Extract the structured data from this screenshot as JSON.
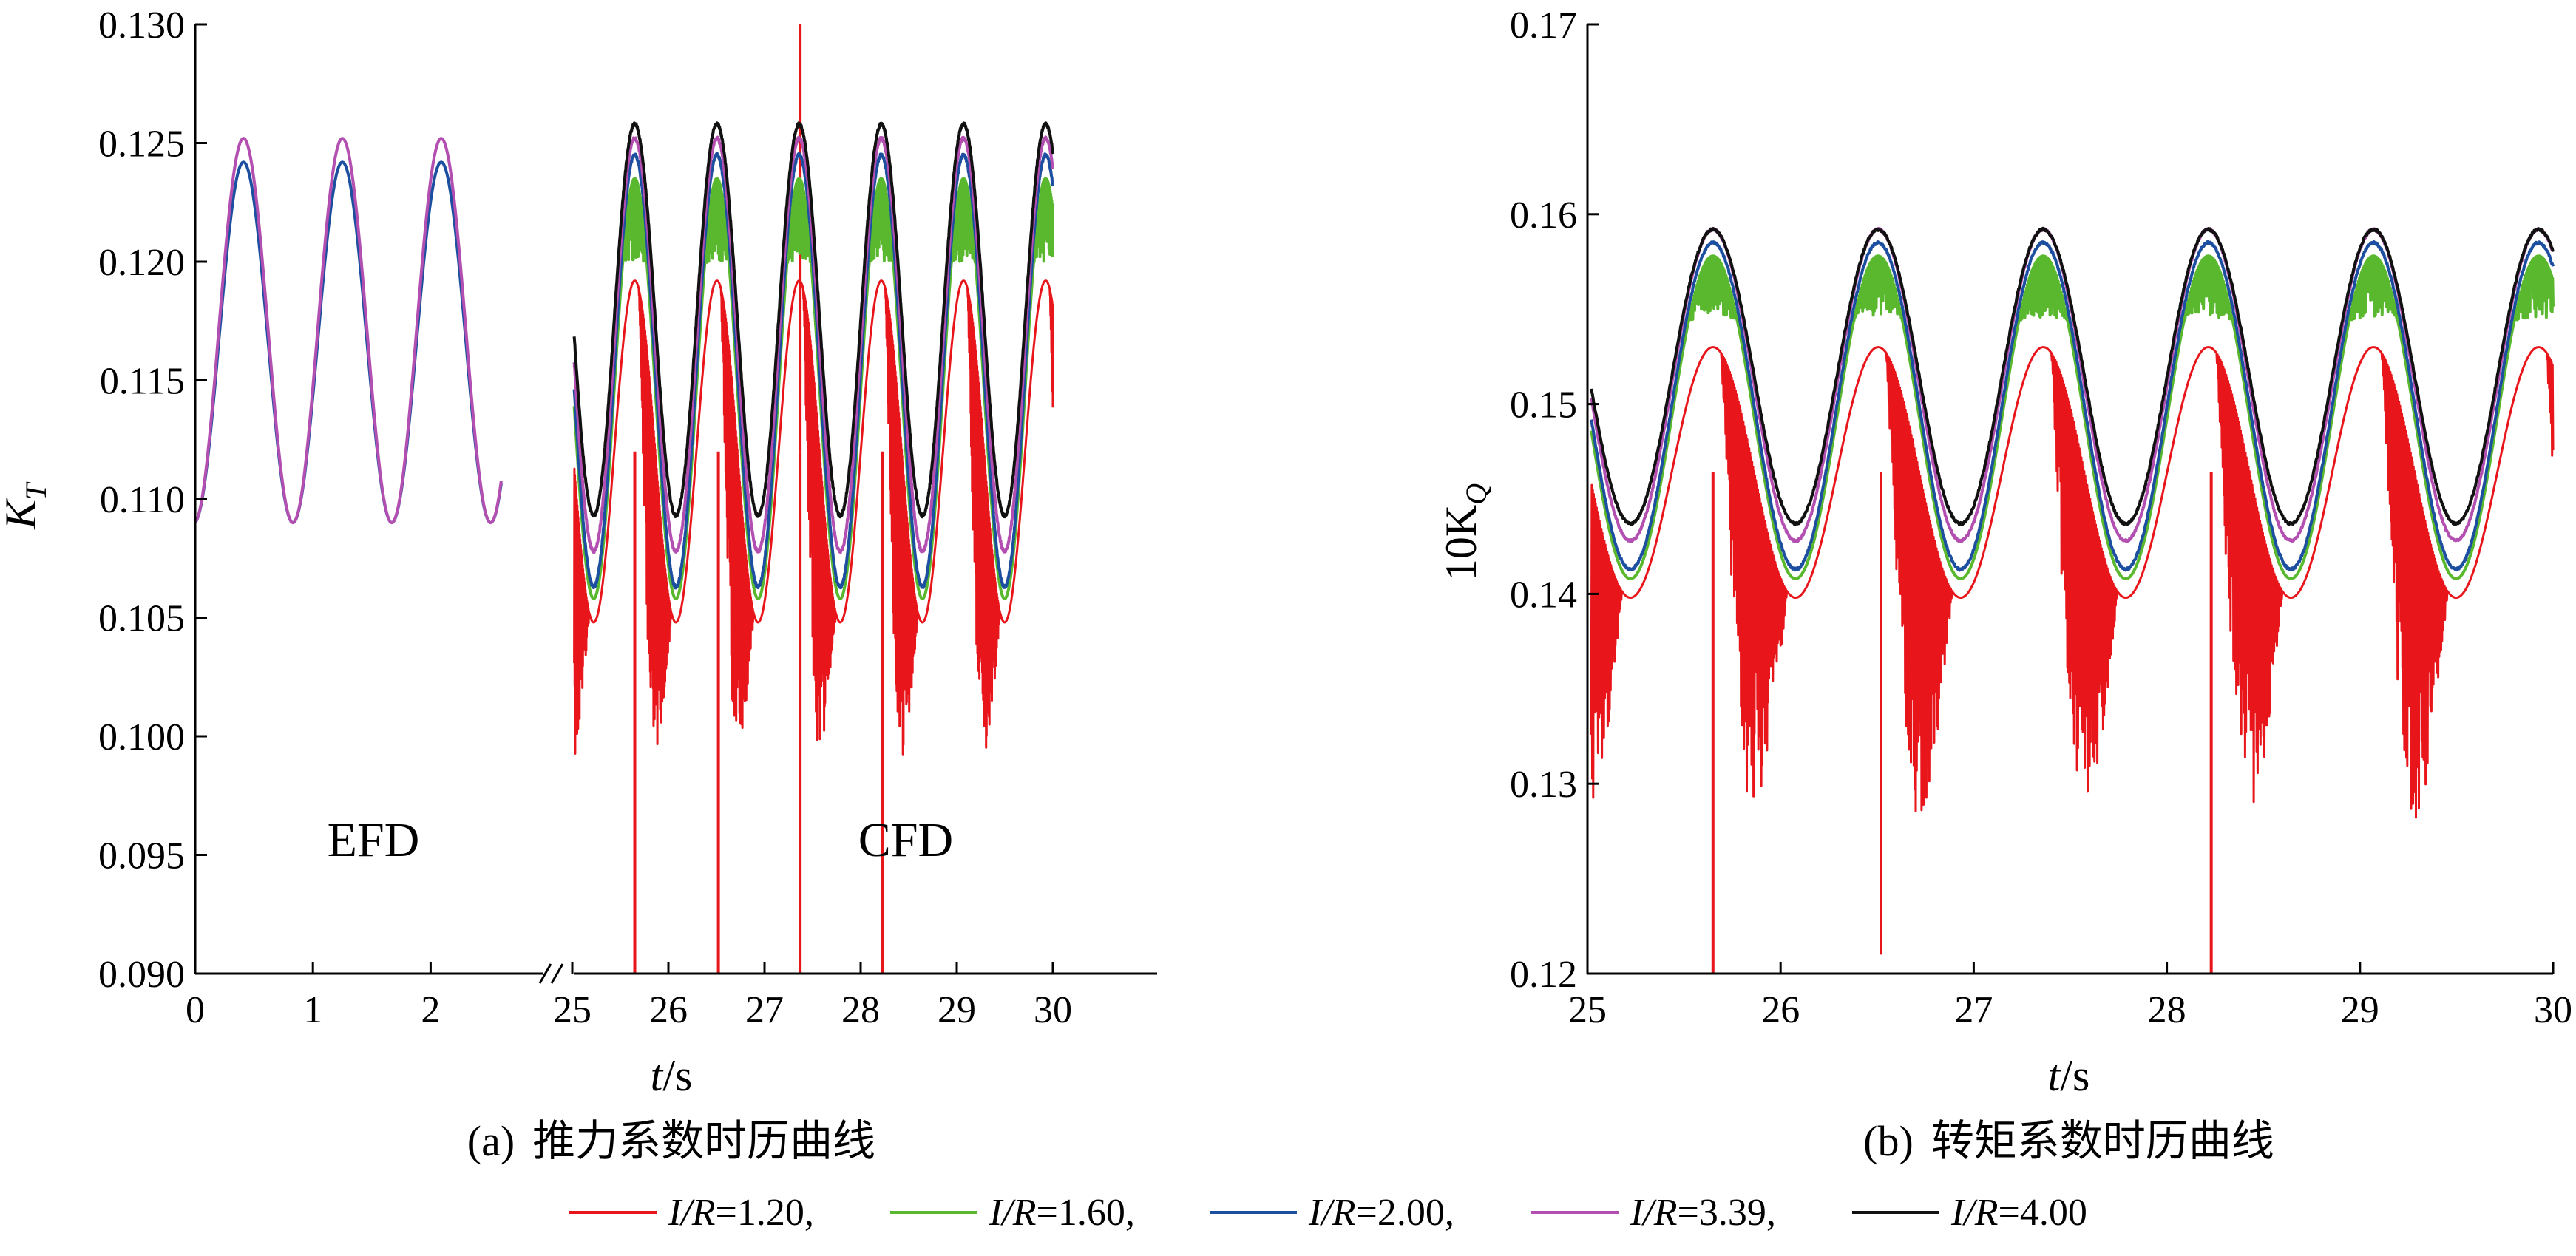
{
  "chart_data": [
    {
      "panel": "a",
      "type": "line",
      "caption_tag": "(a)",
      "caption_text": "推力系数时历曲线",
      "ylabel_main": "K",
      "ylabel_sub": "T",
      "xlabel_var": "t",
      "xlabel_unit": "/s",
      "ylim": [
        0.09,
        0.13
      ],
      "y_ticks": [
        "0.130",
        "0.125",
        "0.120",
        "0.115",
        "0.110",
        "0.105",
        "0.100",
        "0.095",
        "0.090"
      ],
      "x_ticks_efd": [
        "0",
        "1",
        "2"
      ],
      "x_ticks_cfd": [
        "25",
        "26",
        "27",
        "28",
        "29",
        "30"
      ],
      "x_break": true,
      "annotations": [
        "EFD",
        "CFD"
      ],
      "efd": {
        "x_range": [
          0,
          2.6
        ],
        "period": 0.84,
        "series": [
          {
            "name": "I/R=2.00",
            "mean": 0.1166,
            "amplitude": 0.0076
          },
          {
            "name": "I/R=3.39",
            "mean": 0.1171,
            "amplitude": 0.0081
          }
        ]
      },
      "cfd": {
        "x_range": [
          25,
          30
        ],
        "period": 0.855,
        "first_peak": 25.65,
        "series": [
          {
            "name": "I/R=1.20",
            "max": 0.1192,
            "min": 0.1048,
            "noise_low": 0.098,
            "spikes": [
              [
                25.65,
                0.09
              ],
              [
                26.52,
                0.09
              ],
              [
                27.37,
                0.13
              ],
              [
                27.37,
                0.09
              ],
              [
                28.23,
                0.09
              ]
            ]
          },
          {
            "name": "I/R=1.60",
            "max": 0.1235,
            "min": 0.1058,
            "noise_high": 0.121
          },
          {
            "name": "I/R=2.00",
            "max": 0.1245,
            "min": 0.1063
          },
          {
            "name": "I/R=3.39",
            "max": 0.1252,
            "min": 0.1078
          },
          {
            "name": "I/R=4.00",
            "max": 0.1258,
            "min": 0.1093
          }
        ]
      }
    },
    {
      "panel": "b",
      "type": "line",
      "caption_tag": "(b)",
      "caption_text": "转矩系数时历曲线",
      "ylabel_main": "10K",
      "ylabel_sub": "Q",
      "xlabel_var": "t",
      "xlabel_unit": "/s",
      "ylim": [
        0.12,
        0.17
      ],
      "y_ticks": [
        "0.17",
        "0.16",
        "0.15",
        "0.14",
        "0.13",
        "0.12"
      ],
      "x_ticks": [
        "25",
        "26",
        "27",
        "28",
        "29",
        "30"
      ],
      "xlim": [
        25,
        30
      ],
      "period": 0.855,
      "first_peak": 25.65,
      "series": [
        {
          "name": "I/R=1.20",
          "max": 0.153,
          "min": 0.1398,
          "noise_low": 0.127,
          "spikes": [
            [
              25.65,
              0.12
            ],
            [
              26.52,
              0.121
            ],
            [
              28.23,
              0.12
            ]
          ]
        },
        {
          "name": "I/R=1.60",
          "max": 0.1578,
          "min": 0.1408,
          "noise_high": 0.1555
        },
        {
          "name": "I/R=2.00",
          "max": 0.1585,
          "min": 0.1413
        },
        {
          "name": "I/R=3.39",
          "max": 0.1592,
          "min": 0.1428
        },
        {
          "name": "I/R=4.00",
          "max": 0.1592,
          "min": 0.1437
        }
      ]
    }
  ],
  "legend": [
    {
      "italic_part": "I/R",
      "value_part": "=1.20,",
      "color": "#e8151b"
    },
    {
      "italic_part": "I/R",
      "value_part": "=1.60,",
      "color": "#5ab82e"
    },
    {
      "italic_part": "I/R",
      "value_part": "=2.00,",
      "color": "#1d4fa0"
    },
    {
      "italic_part": "I/R",
      "value_part": "=3.39,",
      "color": "#b24fb0"
    },
    {
      "italic_part": "I/R",
      "value_part": "=4.00",
      "color": "#111111"
    }
  ],
  "colors": {
    "I/R=1.20": "#e8151b",
    "I/R=1.60": "#5ab82e",
    "I/R=2.00": "#1d4fa0",
    "I/R=3.39": "#b24fb0",
    "I/R=4.00": "#111111"
  }
}
